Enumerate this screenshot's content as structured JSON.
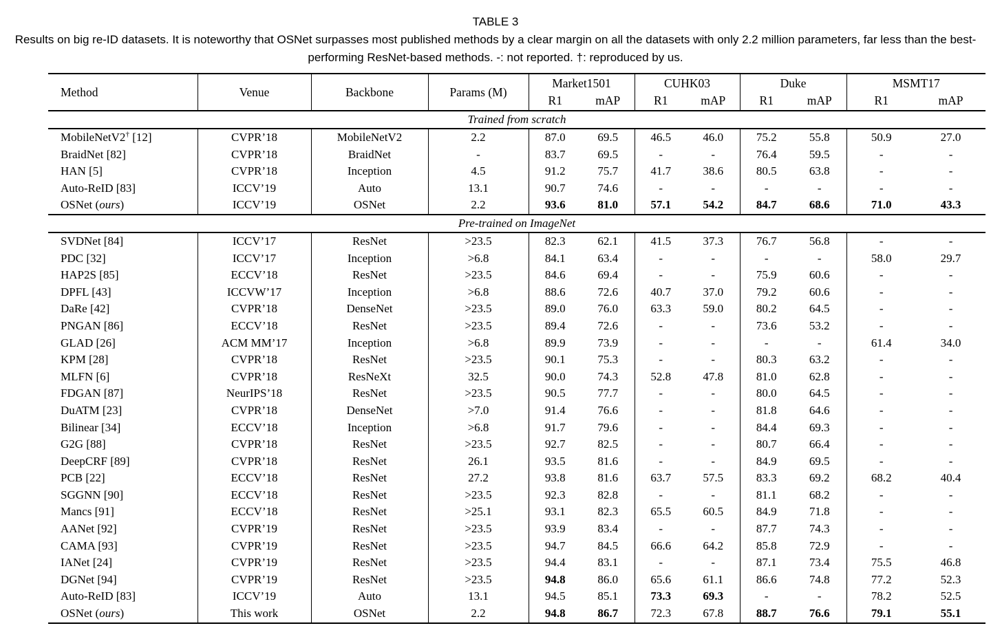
{
  "colors": {
    "text": "#000000",
    "background": "#ffffff"
  },
  "caption": {
    "label": "TABLE 3",
    "text": "Results on big re-ID datasets. It is noteworthy that OSNet surpasses most published methods by a clear margin on all the datasets with only 2.2 million parameters, far less than the best-performing ResNet-based methods. -: not reported. †: reproduced by us."
  },
  "table": {
    "columns": [
      "Method",
      "Venue",
      "Backbone",
      "Params (M)"
    ],
    "groups": [
      {
        "label": "Market1501",
        "sub": [
          "R1",
          "mAP"
        ]
      },
      {
        "label": "CUHK03",
        "sub": [
          "R1",
          "mAP"
        ]
      },
      {
        "label": "Duke",
        "sub": [
          "R1",
          "mAP"
        ]
      },
      {
        "label": "MSMT17",
        "sub": [
          "R1",
          "mAP"
        ]
      }
    ],
    "sections": [
      {
        "label": "Trained from scratch",
        "rows": [
          [
            "MobileNetV2^†^ [12]",
            "CVPR’18",
            "MobileNetV2",
            "2.2",
            "87.0",
            "69.5",
            "46.5",
            "46.0",
            "75.2",
            "55.8",
            "50.9",
            "27.0"
          ],
          [
            "BraidNet [82]",
            "CVPR’18",
            "BraidNet",
            "-",
            "83.7",
            "69.5",
            "-",
            "-",
            "76.4",
            "59.5",
            "-",
            "-"
          ],
          [
            "HAN [5]",
            "CVPR’18",
            "Inception",
            "4.5",
            "91.2",
            "75.7",
            "41.7",
            "38.6",
            "80.5",
            "63.8",
            "-",
            "-"
          ],
          [
            "Auto-ReID [83]",
            "ICCV’19",
            "Auto",
            "13.1",
            "90.7",
            "74.6",
            "-",
            "-",
            "-",
            "-",
            "-",
            "-"
          ],
          [
            "OSNet (*ours*)",
            "ICCV’19",
            "OSNet",
            "2.2",
            "**93.6**",
            "**81.0**",
            "**57.1**",
            "**54.2**",
            "**84.7**",
            "**68.6**",
            "**71.0**",
            "**43.3**"
          ]
        ]
      },
      {
        "label": "Pre-trained on ImageNet",
        "rows": [
          [
            "SVDNet [84]",
            "ICCV’17",
            "ResNet",
            ">23.5",
            "82.3",
            "62.1",
            "41.5",
            "37.3",
            "76.7",
            "56.8",
            "-",
            "-"
          ],
          [
            "PDC [32]",
            "ICCV’17",
            "Inception",
            ">6.8",
            "84.1",
            "63.4",
            "-",
            "-",
            "-",
            "-",
            "58.0",
            "29.7"
          ],
          [
            "HAP2S [85]",
            "ECCV’18",
            "ResNet",
            ">23.5",
            "84.6",
            "69.4",
            "-",
            "-",
            "75.9",
            "60.6",
            "-",
            "-"
          ],
          [
            "DPFL [43]",
            "ICCVW’17",
            "Inception",
            ">6.8",
            "88.6",
            "72.6",
            "40.7",
            "37.0",
            "79.2",
            "60.6",
            "-",
            "-"
          ],
          [
            "DaRe [42]",
            "CVPR’18",
            "DenseNet",
            ">23.5",
            "89.0",
            "76.0",
            "63.3",
            "59.0",
            "80.2",
            "64.5",
            "-",
            "-"
          ],
          [
            "PNGAN [86]",
            "ECCV’18",
            "ResNet",
            ">23.5",
            "89.4",
            "72.6",
            "-",
            "-",
            "73.6",
            "53.2",
            "-",
            "-"
          ],
          [
            "GLAD [26]",
            "ACM MM’17",
            "Inception",
            ">6.8",
            "89.9",
            "73.9",
            "-",
            "-",
            "-",
            "-",
            "61.4",
            "34.0"
          ],
          [
            "KPM [28]",
            "CVPR’18",
            "ResNet",
            ">23.5",
            "90.1",
            "75.3",
            "-",
            "-",
            "80.3",
            "63.2",
            "-",
            "-"
          ],
          [
            "MLFN [6]",
            "CVPR’18",
            "ResNeXt",
            "32.5",
            "90.0",
            "74.3",
            "52.8",
            "47.8",
            "81.0",
            "62.8",
            "-",
            "-"
          ],
          [
            "FDGAN [87]",
            "NeurIPS’18",
            "ResNet",
            ">23.5",
            "90.5",
            "77.7",
            "-",
            "-",
            "80.0",
            "64.5",
            "-",
            "-"
          ],
          [
            "DuATM [23]",
            "CVPR’18",
            "DenseNet",
            ">7.0",
            "91.4",
            "76.6",
            "-",
            "-",
            "81.8",
            "64.6",
            "-",
            "-"
          ],
          [
            "Bilinear [34]",
            "ECCV’18",
            "Inception",
            ">6.8",
            "91.7",
            "79.6",
            "-",
            "-",
            "84.4",
            "69.3",
            "-",
            "-"
          ],
          [
            "G2G [88]",
            "CVPR’18",
            "ResNet",
            ">23.5",
            "92.7",
            "82.5",
            "-",
            "-",
            "80.7",
            "66.4",
            "-",
            "-"
          ],
          [
            "DeepCRF [89]",
            "CVPR’18",
            "ResNet",
            "26.1",
            "93.5",
            "81.6",
            "-",
            "-",
            "84.9",
            "69.5",
            "-",
            "-"
          ],
          [
            "PCB [22]",
            "ECCV’18",
            "ResNet",
            "27.2",
            "93.8",
            "81.6",
            "63.7",
            "57.5",
            "83.3",
            "69.2",
            "68.2",
            "40.4"
          ],
          [
            "SGGNN [90]",
            "ECCV’18",
            "ResNet",
            ">23.5",
            "92.3",
            "82.8",
            "-",
            "-",
            "81.1",
            "68.2",
            "-",
            "-"
          ],
          [
            "Mancs [91]",
            "ECCV’18",
            "ResNet",
            ">25.1",
            "93.1",
            "82.3",
            "65.5",
            "60.5",
            "84.9",
            "71.8",
            "-",
            "-"
          ],
          [
            "AANet [92]",
            "CVPR’19",
            "ResNet",
            ">23.5",
            "93.9",
            "83.4",
            "-",
            "-",
            "87.7",
            "74.3",
            "-",
            "-"
          ],
          [
            "CAMA [93]",
            "CVPR’19",
            "ResNet",
            ">23.5",
            "94.7",
            "84.5",
            "66.6",
            "64.2",
            "85.8",
            "72.9",
            "-",
            "-"
          ],
          [
            "IANet [24]",
            "CVPR’19",
            "ResNet",
            ">23.5",
            "94.4",
            "83.1",
            "-",
            "-",
            "87.1",
            "73.4",
            "75.5",
            "46.8"
          ],
          [
            "DGNet [94]",
            "CVPR’19",
            "ResNet",
            ">23.5",
            "**94.8**",
            "86.0",
            "65.6",
            "61.1",
            "86.6",
            "74.8",
            "77.2",
            "52.3"
          ],
          [
            "Auto-ReID [83]",
            "ICCV’19",
            "Auto",
            "13.1",
            "94.5",
            "85.1",
            "**73.3**",
            "**69.3**",
            "-",
            "-",
            "78.2",
            "52.5"
          ],
          [
            "OSNet (*ours*)",
            "This work",
            "OSNet",
            "2.2",
            "**94.8**",
            "**86.7**",
            "72.3",
            "67.8",
            "**88.7**",
            "**76.6**",
            "**79.1**",
            "**55.1**"
          ]
        ]
      }
    ]
  }
}
